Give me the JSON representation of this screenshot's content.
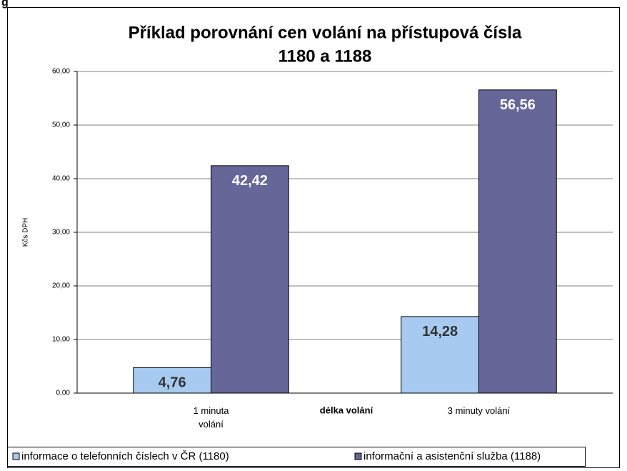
{
  "fragment": "g",
  "chart_data": {
    "type": "bar",
    "title": "Příklad porovnání cen volání na přístupová čísla",
    "subtitle": "1180 a 1188",
    "y_label": "Kčs DPH",
    "x_label": "délka volání",
    "categories": [
      "1 minuta\nvolání",
      "3 minuty volání"
    ],
    "series": [
      {
        "name": "informace o telefonních číslech v ČR (1180)",
        "color": "#a6caf0",
        "values": [
          4.76,
          14.28
        ],
        "value_labels": [
          "4,76",
          "14,28"
        ],
        "label_color": "#333333"
      },
      {
        "name": "informační a asistenční služba (1188)",
        "color": "#666699",
        "values": [
          42.42,
          56.56
        ],
        "value_labels": [
          "42,42",
          "56,56"
        ],
        "label_color": "#ffffff"
      }
    ],
    "ylim": [
      0,
      60
    ],
    "yticks": [
      {
        "value": 0,
        "label": "0,00"
      },
      {
        "value": 10,
        "label": "10,00"
      },
      {
        "value": 20,
        "label": "20,00"
      },
      {
        "value": 30,
        "label": "30,00"
      },
      {
        "value": 40,
        "label": "40,00"
      },
      {
        "value": 50,
        "label": "50,00"
      },
      {
        "value": 60,
        "label": "60,00"
      }
    ],
    "grid": true,
    "legend": "bottom"
  }
}
